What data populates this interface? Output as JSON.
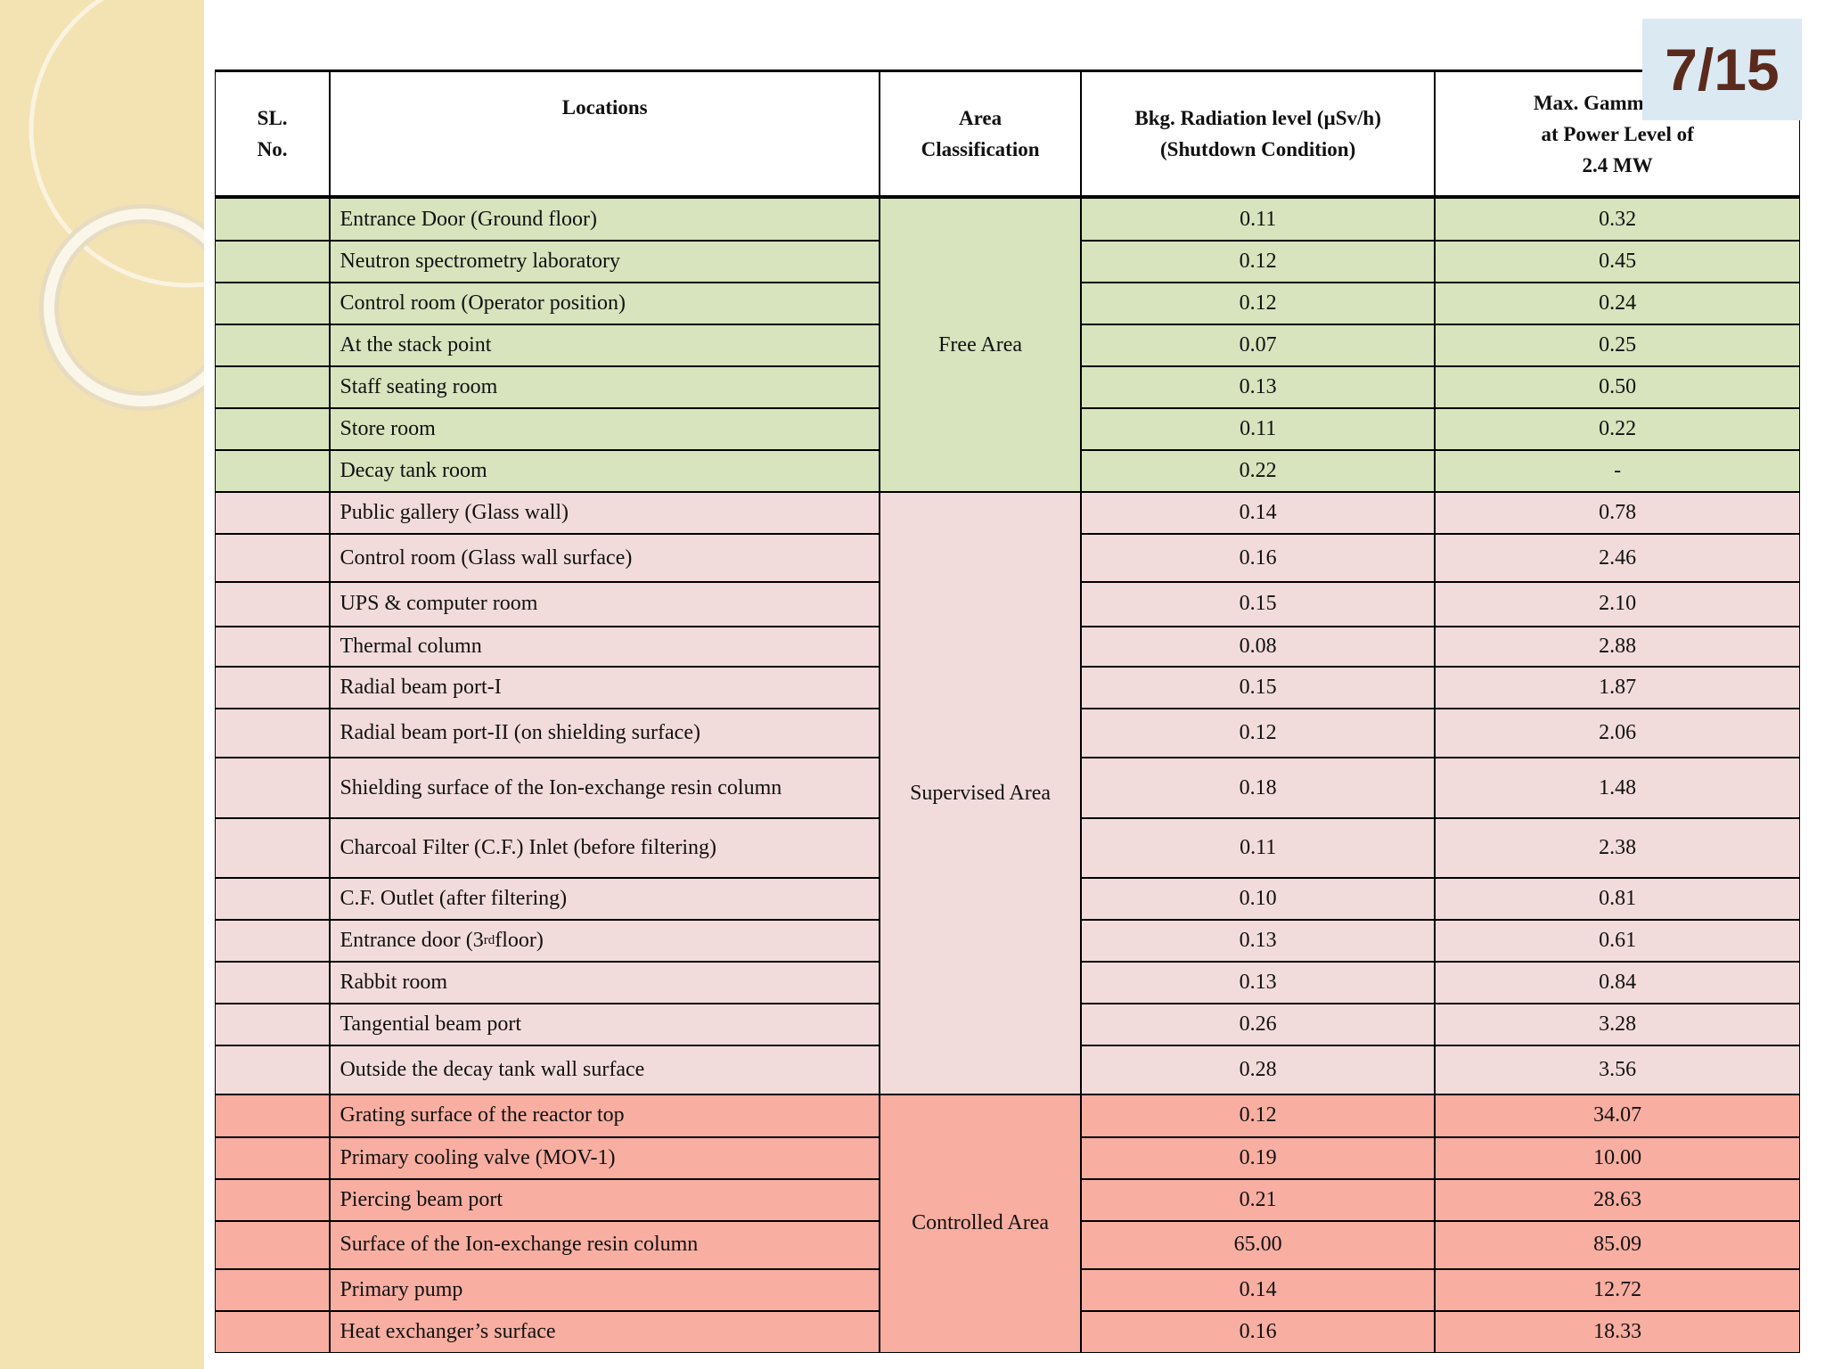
{
  "page_number": "7/15",
  "table": {
    "headers": {
      "sl_no": [
        "SL.",
        "No."
      ],
      "locations": [
        "Locations"
      ],
      "area": [
        "Area",
        "Classification"
      ],
      "bkg": [
        "Bkg. Radiation level (µSv/h)",
        "(Shutdown Condition)"
      ],
      "max": [
        "Max. Gamma Dose",
        "at Power Level of",
        "2.4 MW"
      ]
    },
    "groups": [
      {
        "label": "Free Area",
        "color": "#d7e4bd",
        "rows": [
          {
            "location": "Entrance Door (Ground floor)",
            "bkg": "0.11",
            "max": "0.32"
          },
          {
            "location": "Neutron spectrometry laboratory",
            "bkg": "0.12",
            "max": "0.45"
          },
          {
            "location": "Control room (Operator position)",
            "bkg": "0.12",
            "max": "0.24"
          },
          {
            "location": "At the stack point",
            "bkg": "0.07",
            "max": "0.25"
          },
          {
            "location": "Staff seating room",
            "bkg": "0.13",
            "max": "0.50"
          },
          {
            "location": "Store room",
            "bkg": "0.11",
            "max": "0.22"
          },
          {
            "location": "Decay tank room",
            "bkg": "0.22",
            "max": "-"
          }
        ]
      },
      {
        "label": "Supervised Area",
        "color": "#f2dcdb",
        "rows": [
          {
            "location": "Public gallery (Glass wall)",
            "bkg": "0.14",
            "max": "0.78"
          },
          {
            "location": "Control room (Glass wall surface)",
            "bkg": "0.16",
            "max": "2.46"
          },
          {
            "location": "UPS & computer room",
            "bkg": "0.15",
            "max": "2.10"
          },
          {
            "location": "Thermal column",
            "bkg": "0.08",
            "max": "2.88"
          },
          {
            "location": "Radial beam port-I",
            "bkg": "0.15",
            "max": "1.87"
          },
          {
            "location": "Radial beam port-II (on shielding surface)",
            "bkg": "0.12",
            "max": "2.06"
          },
          {
            "location": "Shielding surface of the Ion-exchange resin column",
            "bkg": "0.18",
            "max": "1.48"
          },
          {
            "location": "Charcoal Filter (C.F.) Inlet (before filtering)",
            "bkg": "0.11",
            "max": "2.38"
          },
          {
            "location": "C.F. Outlet (after filtering)",
            "bkg": "0.10",
            "max": "0.81"
          },
          {
            "location": {
              "text": "Entrance door (3",
              "sup": "rd",
              "tail": " floor)"
            },
            "bkg": "0.13",
            "max": "0.61"
          },
          {
            "location": "Rabbit room",
            "bkg": "0.13",
            "max": "0.84"
          },
          {
            "location": "Tangential beam port",
            "bkg": "0.26",
            "max": "3.28"
          },
          {
            "location": "Outside the decay tank wall surface",
            "bkg": "0.28",
            "max": "3.56"
          }
        ]
      },
      {
        "label": "Controlled Area",
        "color": "#f8aea1",
        "rows": [
          {
            "location": "Grating surface of the reactor top",
            "bkg": "0.12",
            "max": "34.07"
          },
          {
            "location": "Primary cooling valve (MOV-1)",
            "bkg": "0.19",
            "max": "10.00"
          },
          {
            "location": "Piercing beam port",
            "bkg": "0.21",
            "max": "28.63"
          },
          {
            "location": "Surface of the Ion-exchange resin column",
            "bkg": "65.00",
            "max": "85.09"
          },
          {
            "location": "Primary pump",
            "bkg": "0.14",
            "max": "12.72"
          },
          {
            "location": "Heat exchanger’s surface",
            "bkg": "0.16",
            "max": "18.33"
          }
        ]
      }
    ]
  }
}
